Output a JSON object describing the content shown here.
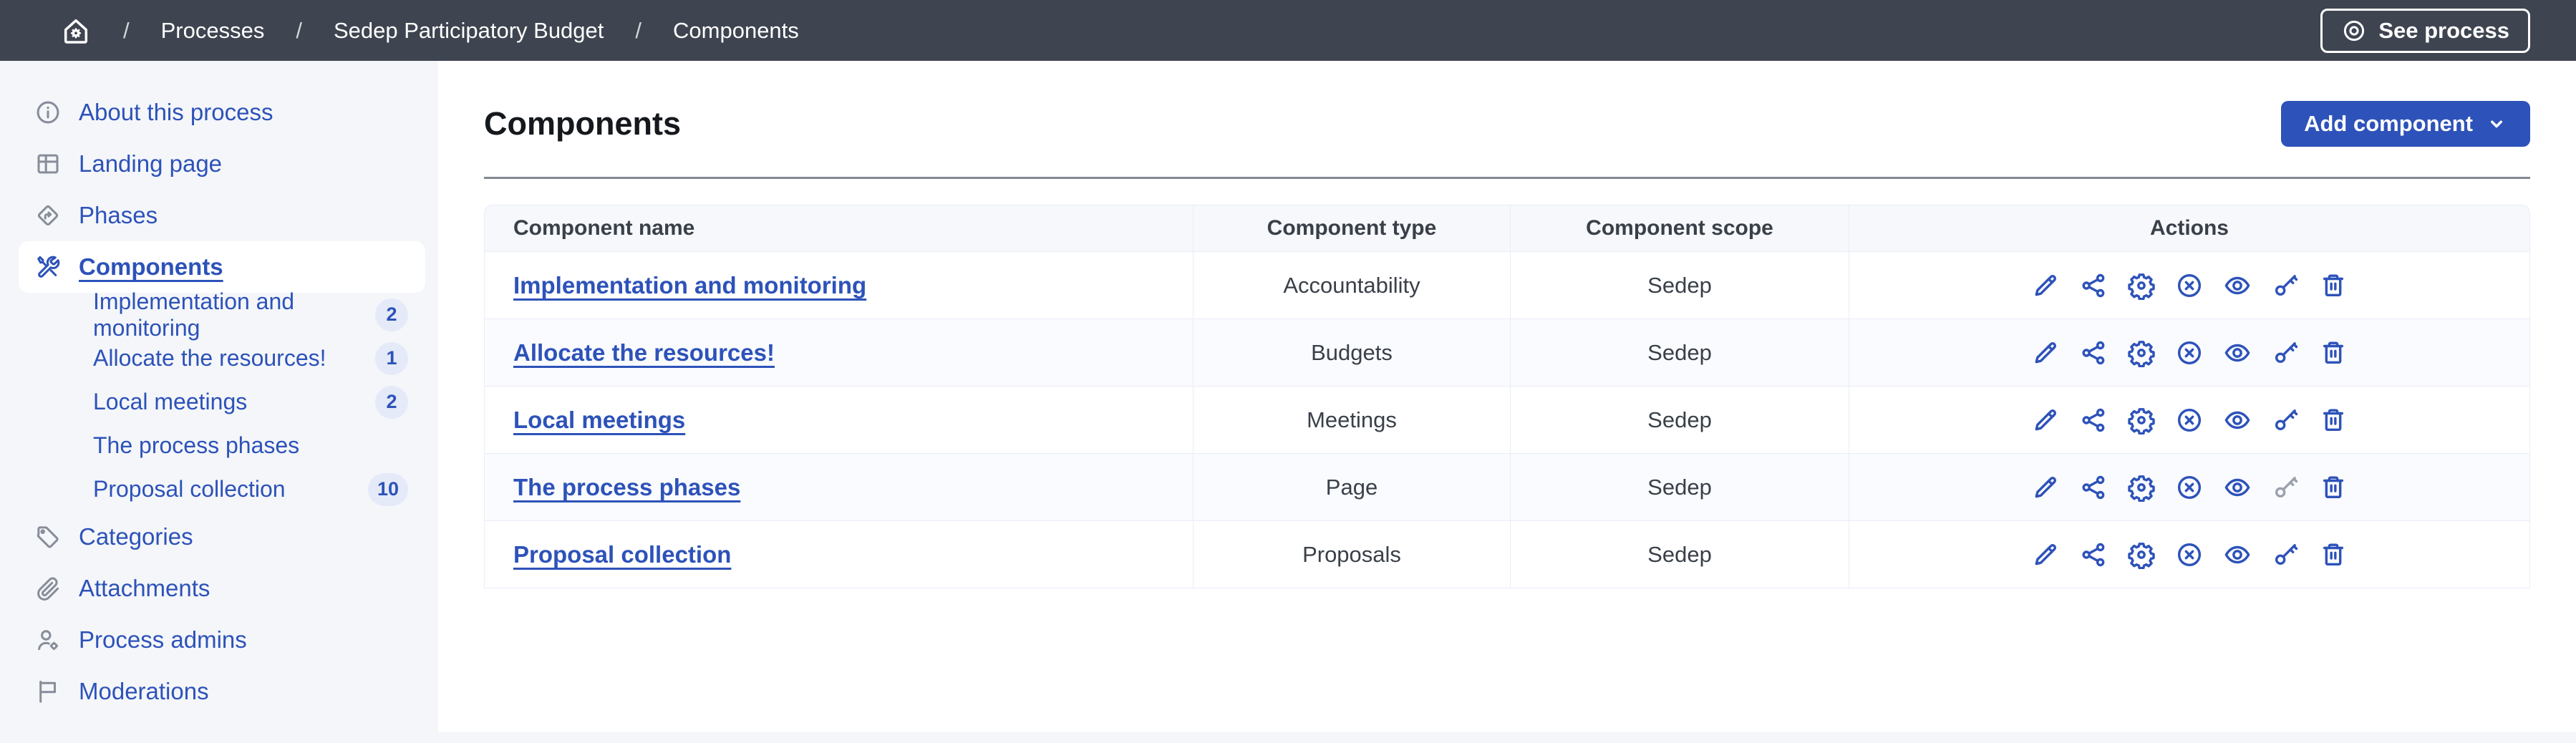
{
  "topbar": {
    "home_icon": "home-gear-icon",
    "separator": "/",
    "breadcrumb": [
      "Processes",
      "Sedep Participatory Budget",
      "Components"
    ],
    "see_process_label": "See process",
    "see_process_icon": "eye-ring-icon"
  },
  "sidebar": {
    "items": [
      {
        "id": "about",
        "label": "About this process",
        "icon": "info"
      },
      {
        "id": "landing-page",
        "label": "Landing page",
        "icon": "layout"
      },
      {
        "id": "phases",
        "label": "Phases",
        "icon": "signpost"
      },
      {
        "id": "components",
        "label": "Components",
        "icon": "tools",
        "active": true,
        "children": [
          {
            "label": "Implementation and monitoring",
            "badge": "2"
          },
          {
            "label": "Allocate the resources!",
            "badge": "1"
          },
          {
            "label": "Local meetings",
            "badge": "2"
          },
          {
            "label": "The process phases",
            "badge": null
          },
          {
            "label": "Proposal collection",
            "badge": "10"
          }
        ]
      },
      {
        "id": "categories",
        "label": "Categories",
        "icon": "tag"
      },
      {
        "id": "attachments",
        "label": "Attachments",
        "icon": "paperclip"
      },
      {
        "id": "process-admins",
        "label": "Process admins",
        "icon": "user-gear"
      },
      {
        "id": "moderations",
        "label": "Moderations",
        "icon": "flag"
      }
    ]
  },
  "main": {
    "title": "Components",
    "add_component_label": "Add component",
    "table": {
      "headers": [
        "Component name",
        "Component type",
        "Component scope",
        "Actions"
      ],
      "actions": [
        {
          "id": "edit",
          "icon": "pencil"
        },
        {
          "id": "share",
          "icon": "share"
        },
        {
          "id": "configure",
          "icon": "gear"
        },
        {
          "id": "unpublish",
          "icon": "circle-x"
        },
        {
          "id": "preview",
          "icon": "eye"
        },
        {
          "id": "permissions",
          "icon": "key"
        },
        {
          "id": "delete",
          "icon": "trash"
        }
      ],
      "rows": [
        {
          "name": "Implementation and monitoring",
          "type": "Accountability",
          "scope": "Sedep",
          "permissions_enabled": true
        },
        {
          "name": "Allocate the resources!",
          "type": "Budgets",
          "scope": "Sedep",
          "permissions_enabled": true
        },
        {
          "name": "Local meetings",
          "type": "Meetings",
          "scope": "Sedep",
          "permissions_enabled": true
        },
        {
          "name": "The process phases",
          "type": "Page",
          "scope": "Sedep",
          "permissions_enabled": false
        },
        {
          "name": "Proposal collection",
          "type": "Proposals",
          "scope": "Sedep",
          "permissions_enabled": true
        }
      ]
    }
  },
  "colors": {
    "accent": "#2d52b9",
    "topbar_bg": "#3e4450",
    "sidebar_bg": "#f4f6f9",
    "badge_bg": "#e4eaf8",
    "table_header_bg": "#f6f8fc",
    "table_border": "#e9edf7",
    "row_alt_bg": "#fafbfe",
    "divider": "#828894",
    "text_dark": "#3a4049",
    "title_color": "#15181d",
    "disabled": "#9aa1ad"
  }
}
